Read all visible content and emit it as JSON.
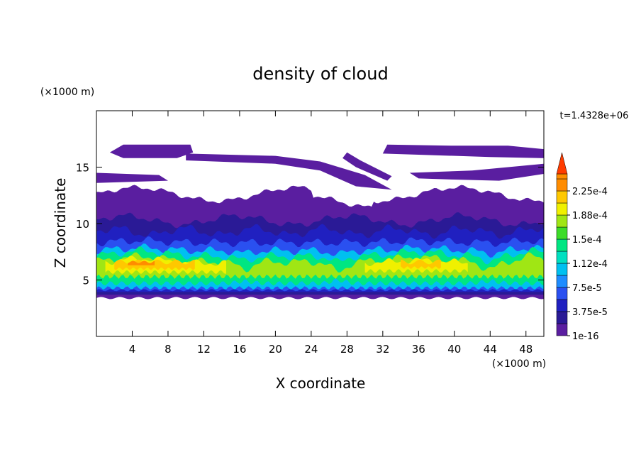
{
  "chart_data": {
    "type": "contour",
    "title": "density of cloud",
    "x_label": "X coordinate",
    "y_label": "Z coordinate",
    "x_unit": "(×1000 m)",
    "y_unit": "(×1000 m)",
    "time_label": "t=1.4328e+06",
    "xlim": [
      0,
      50
    ],
    "ylim": [
      0,
      20
    ],
    "xticks": [
      4,
      8,
      12,
      16,
      20,
      24,
      28,
      32,
      36,
      40,
      44,
      48
    ],
    "yticks": [
      5,
      10,
      15
    ],
    "colorbar": {
      "levels": [
        1e-16,
        1.875e-05,
        3.75e-05,
        5.625e-05,
        7.5e-05,
        9.375e-05,
        0.0001125,
        0.00013125,
        0.00015,
        0.00016875,
        0.0001875,
        0.00020625,
        0.000225,
        0.00024375
      ],
      "colors": [
        "#5a1ea0",
        "#2a1a96",
        "#2020c0",
        "#2a50f0",
        "#1e8cff",
        "#00c0f0",
        "#00e0c0",
        "#00e682",
        "#3cdc28",
        "#a0e614",
        "#f0f000",
        "#ffc800",
        "#ff8c00",
        "#ff3c00",
        "#f4a0a0"
      ],
      "ticks": [
        {
          "value": 1e-16,
          "label": "1e-16"
        },
        {
          "value": 3.75e-05,
          "label": "3.75e-5"
        },
        {
          "value": 7.5e-05,
          "label": "7.5e-5"
        },
        {
          "value": 0.0001125,
          "label": "1.12e-4"
        },
        {
          "value": 0.00015,
          "label": "1.5e-4"
        },
        {
          "value": 0.0001875,
          "label": "1.88e-4"
        },
        {
          "value": 0.000225,
          "label": "2.25e-4"
        }
      ]
    }
  }
}
